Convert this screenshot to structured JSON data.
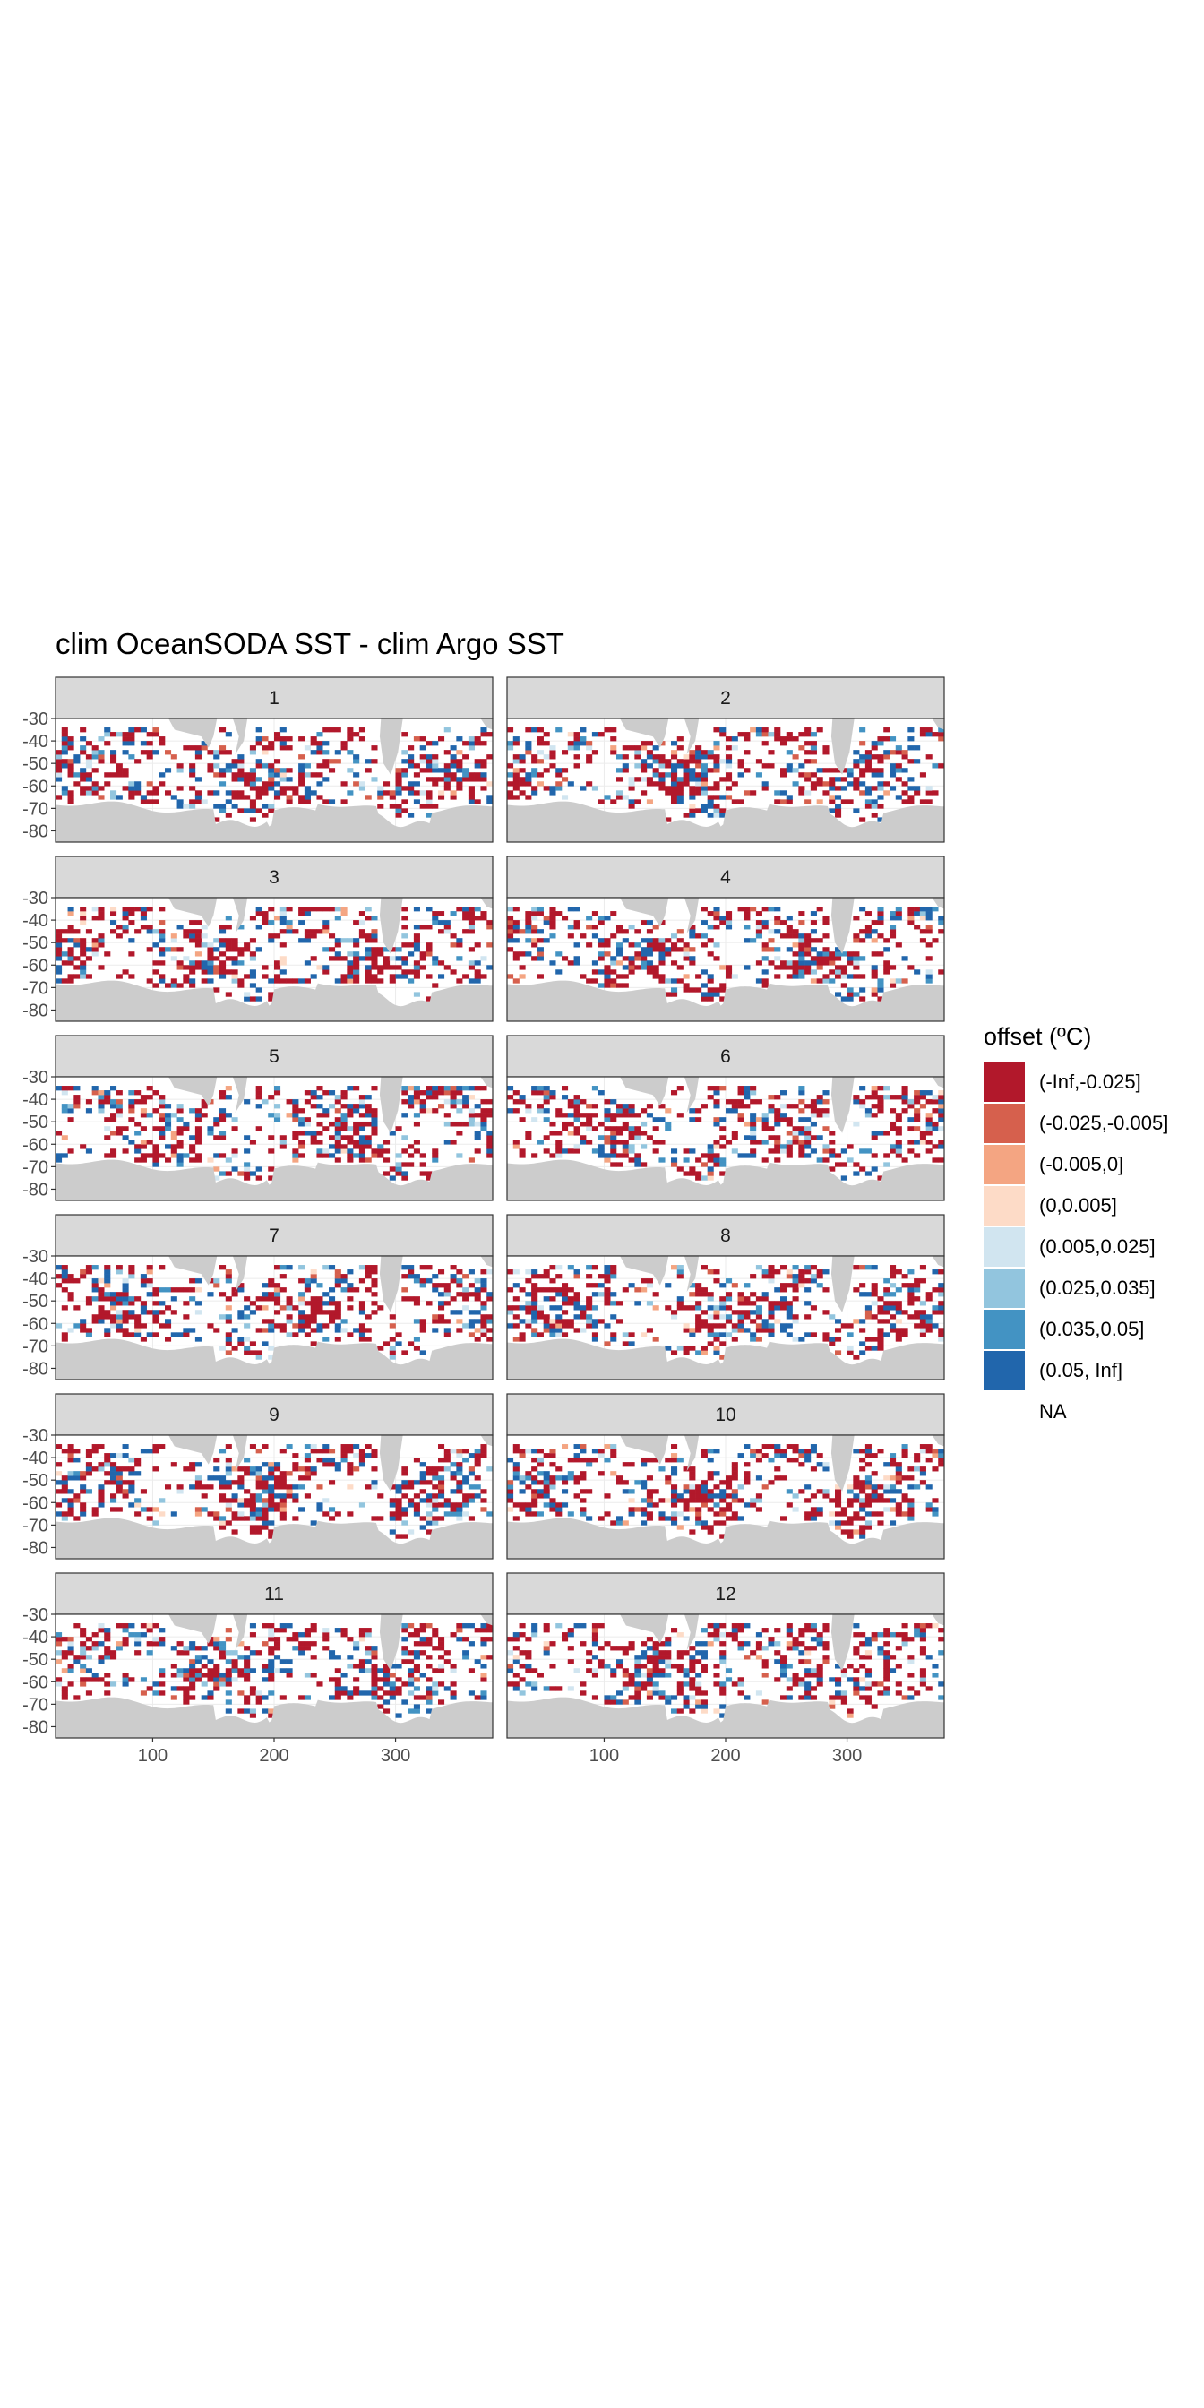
{
  "chart_data": {
    "type": "heatmap",
    "title": "clim OceanSODA SST - clim Argo SST",
    "xlabel": "",
    "ylabel": "",
    "facets": [
      "1",
      "2",
      "3",
      "4",
      "5",
      "6",
      "7",
      "8",
      "9",
      "10",
      "11",
      "12"
    ],
    "facet_layout": {
      "ncol": 2,
      "nrow": 6
    },
    "xlim": [
      20,
      380
    ],
    "ylim": [
      -85,
      -30
    ],
    "x_ticks": [
      100,
      200,
      300
    ],
    "x_tick_labels": [
      "100",
      "200",
      "300"
    ],
    "y_ticks": [
      -30,
      -40,
      -50,
      -60,
      -70,
      -80
    ],
    "y_tick_labels": [
      "-30",
      "-40",
      "-50",
      "-60",
      "-70",
      "-80"
    ],
    "cell_size_deg": [
      5,
      2
    ],
    "grid": true,
    "legend": {
      "title": "offset (ºC)",
      "placement": "right",
      "bins": [
        {
          "label": "(-Inf,-0.025]",
          "color": "#B2182B"
        },
        {
          "label": "(-0.025,-0.005]",
          "color": "#D6604D"
        },
        {
          "label": "(-0.005,0]",
          "color": "#F4A582"
        },
        {
          "label": "(0,0.005]",
          "color": "#FDDBC7"
        },
        {
          "label": "(0.005,0.025]",
          "color": "#D1E5F0"
        },
        {
          "label": "(0.025,0.035]",
          "color": "#92C5DE"
        },
        {
          "label": "(0.035,0.05]",
          "color": "#4393C3"
        },
        {
          "label": "(0.05, Inf]",
          "color": "#2166AC"
        },
        {
          "label": "NA",
          "color": "#FFFFFF"
        }
      ]
    },
    "land_color": "#CCCCCC",
    "panel_strip_color": "#D9D9D9"
  }
}
